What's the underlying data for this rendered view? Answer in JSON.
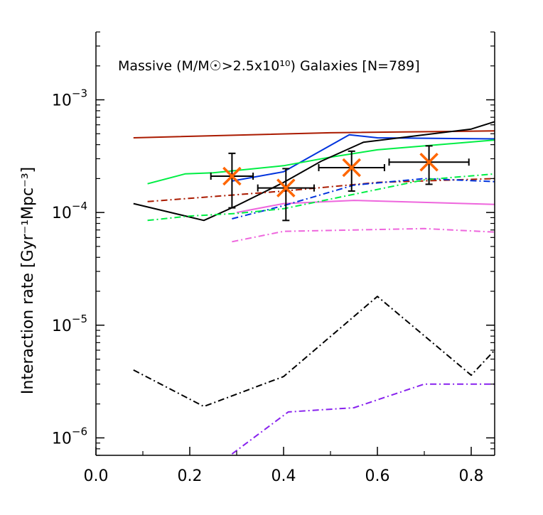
{
  "chart_data": {
    "type": "line",
    "title": "Massive (M/M☉>2.5x10¹⁰) Galaxies [N=789]",
    "xlabel": "",
    "ylabel": "Interaction rate [Gyr⁻¹Mpc⁻³]",
    "xlim": [
      0.0,
      0.85
    ],
    "ylim": [
      7e-07,
      0.004
    ],
    "yscale": "log",
    "x_ticks": [
      "0.0",
      "0.2",
      "0.4",
      "0.6",
      "0.8"
    ],
    "x_tick_values": [
      0.0,
      0.2,
      0.4,
      0.6,
      0.8
    ],
    "y_ticks": [
      {
        "base": "10",
        "exp": "−6",
        "value": 1e-06
      },
      {
        "base": "10",
        "exp": "−5",
        "value": 1e-05
      },
      {
        "base": "10",
        "exp": "−4",
        "value": 0.0001
      },
      {
        "base": "10",
        "exp": "−3",
        "value": 0.001
      }
    ],
    "grid": false,
    "series": [
      {
        "color": "#aa1a00",
        "style": "solid",
        "x": [
          0.08,
          0.5,
          0.85
        ],
        "y": [
          0.00046,
          0.00051,
          0.00053
        ]
      },
      {
        "color": "#0033dd",
        "style": "solid",
        "x": [
          0.29,
          0.4,
          0.54,
          0.6,
          0.85
        ],
        "y": [
          0.00019,
          0.00023,
          0.00049,
          0.00046,
          0.00045
        ]
      },
      {
        "color": "#00ee44",
        "style": "solid",
        "x": [
          0.11,
          0.19,
          0.25,
          0.4,
          0.5,
          0.6,
          0.85
        ],
        "y": [
          0.00018,
          0.00022,
          0.000225,
          0.00026,
          0.00031,
          0.00036,
          0.00044
        ]
      },
      {
        "color": "#000000",
        "style": "solid",
        "x": [
          0.08,
          0.23,
          0.3,
          0.4,
          0.48,
          0.57,
          0.8,
          0.85
        ],
        "y": [
          0.00012,
          8.5e-05,
          0.000115,
          0.000185,
          0.000285,
          0.00042,
          0.00055,
          0.00064
        ]
      },
      {
        "color": "#ee66dd",
        "style": "solid",
        "x": [
          0.3,
          0.4,
          0.55,
          0.85
        ],
        "y": [
          0.0001,
          0.00012,
          0.000128,
          0.000118
        ]
      },
      {
        "color": "#aa1a00",
        "style": "dashdot",
        "x": [
          0.11,
          0.4,
          0.6,
          0.85
        ],
        "y": [
          0.000125,
          0.000155,
          0.000185,
          0.0002
        ]
      },
      {
        "color": "#0033dd",
        "style": "dashdot",
        "x": [
          0.29,
          0.4,
          0.55,
          0.7,
          0.85
        ],
        "y": [
          8.8e-05,
          0.000115,
          0.000175,
          0.0002,
          0.000188
        ]
      },
      {
        "color": "#00ee44",
        "style": "dashdot",
        "x": [
          0.11,
          0.2,
          0.3,
          0.4,
          0.55,
          0.7,
          0.85
        ],
        "y": [
          8.5e-05,
          9.3e-05,
          9.8e-05,
          0.000108,
          0.000145,
          0.000195,
          0.00022
        ]
      },
      {
        "color": "#ee66dd",
        "style": "dashdot",
        "x": [
          0.29,
          0.4,
          0.55,
          0.7,
          0.85
        ],
        "y": [
          5.5e-05,
          6.8e-05,
          7e-05,
          7.2e-05,
          6.7e-05
        ]
      },
      {
        "color": "#000000",
        "style": "dashdot",
        "x": [
          0.08,
          0.23,
          0.4,
          0.6,
          0.8,
          0.85
        ],
        "y": [
          4e-06,
          1.9e-06,
          3.5e-06,
          1.8e-05,
          3.6e-06,
          6e-06
        ]
      },
      {
        "color": "#8822ee",
        "style": "dashdot",
        "x": [
          0.29,
          0.41,
          0.55,
          0.7,
          0.85
        ],
        "y": [
          7.2e-07,
          1.7e-06,
          1.85e-06,
          3e-06,
          3e-06
        ]
      }
    ],
    "data_points": {
      "marker_color": "#ff6600",
      "errorbar_color": "#000000",
      "points": [
        {
          "x": 0.29,
          "y": 0.00021,
          "xerr": [
            0.045,
            0.045
          ],
          "yerr": [
            0.00011,
            0.000335
          ]
        },
        {
          "x": 0.405,
          "y": 0.000165,
          "xerr": [
            0.06,
            0.06
          ],
          "yerr": [
            8.5e-05,
            0.000245
          ]
        },
        {
          "x": 0.545,
          "y": 0.00025,
          "xerr": [
            0.07,
            0.07
          ],
          "yerr": [
            0.000155,
            0.00035
          ]
        },
        {
          "x": 0.71,
          "y": 0.00028,
          "xerr": [
            0.085,
            0.085
          ],
          "yerr": [
            0.000178,
            0.00039
          ]
        }
      ]
    }
  }
}
